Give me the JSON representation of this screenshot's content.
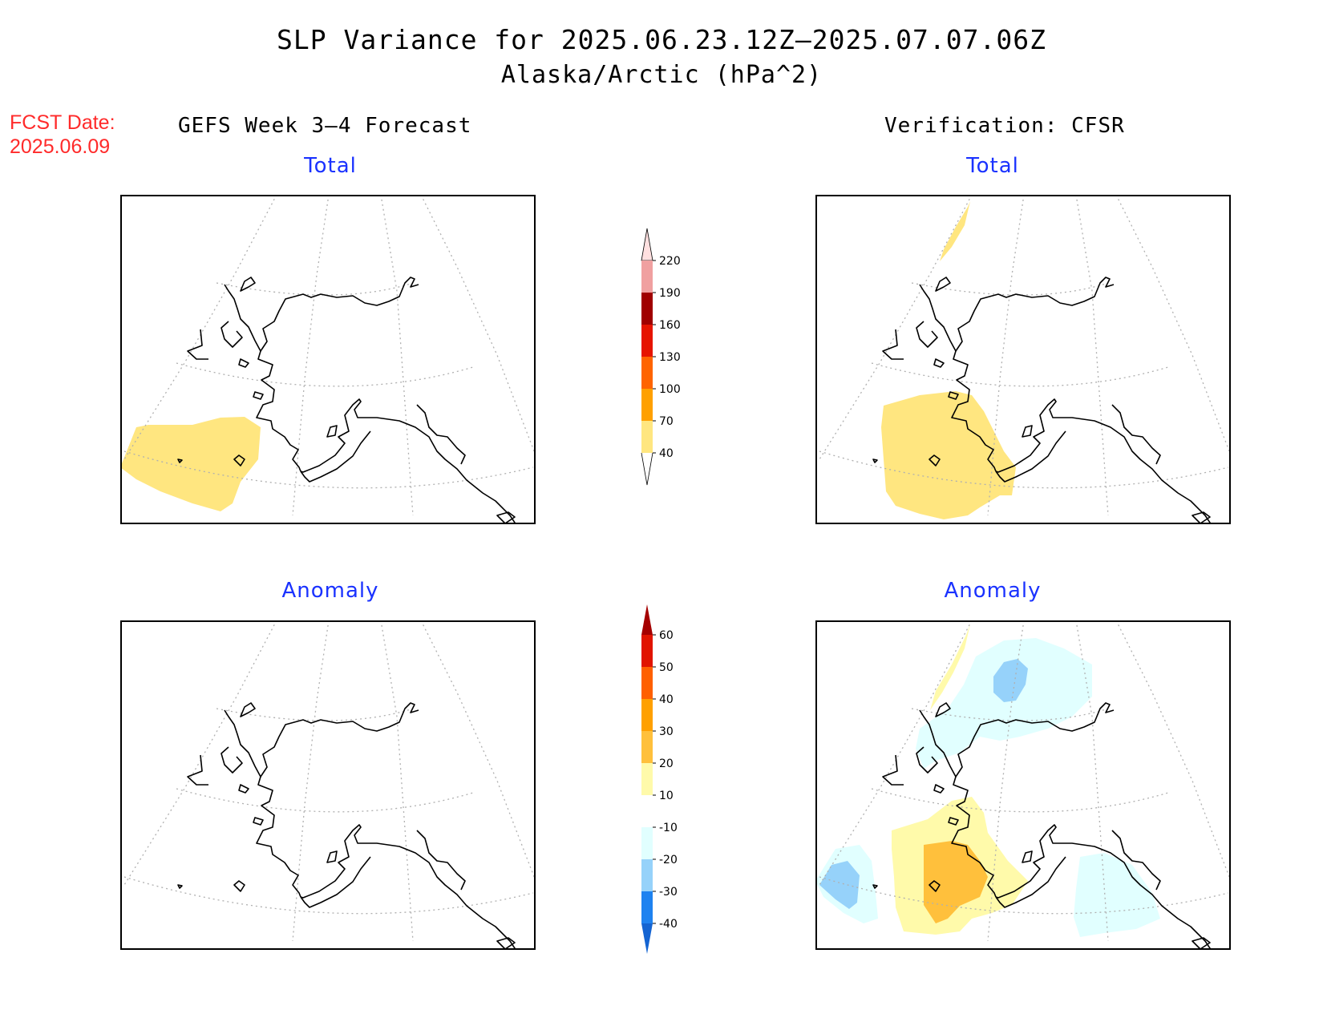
{
  "title": "SLP Variance for 2025.06.23.12Z–2025.07.07.06Z",
  "subtitle": "Alaska/Arctic (hPa^2)",
  "fcst_date_label": "FCST Date:",
  "fcst_date_value": "2025.06.09",
  "left_header": "GEFS Week 3–4 Forecast",
  "right_header": "Verification: CFSR",
  "panels": {
    "top_left_title": "Total",
    "top_right_title": "Total",
    "bottom_left_title": "Anomaly",
    "bottom_right_title": "Anomaly"
  },
  "colorbars": {
    "total": {
      "levels": [
        "40",
        "70",
        "100",
        "130",
        "160",
        "190",
        "220"
      ],
      "colors": [
        "#ffe680",
        "#ffa000",
        "#ff6400",
        "#e61400",
        "#a00000",
        "#f0a0a0",
        "#ffe0e0"
      ]
    },
    "anomaly": {
      "levels": [
        "-40",
        "-30",
        "-20",
        "-10",
        "10",
        "20",
        "30",
        "40",
        "50",
        "60"
      ],
      "colors": [
        "#1464d2",
        "#1e82f0",
        "#96d2fa",
        "#e1ffff",
        "#ffffff",
        "#fffaaa",
        "#ffc03c",
        "#ffa000",
        "#ff6000",
        "#e11400",
        "#a50000"
      ]
    }
  },
  "accent_colors": {
    "fcst_red": "#ff2a2a",
    "panel_title_blue": "#1a32ff"
  }
}
